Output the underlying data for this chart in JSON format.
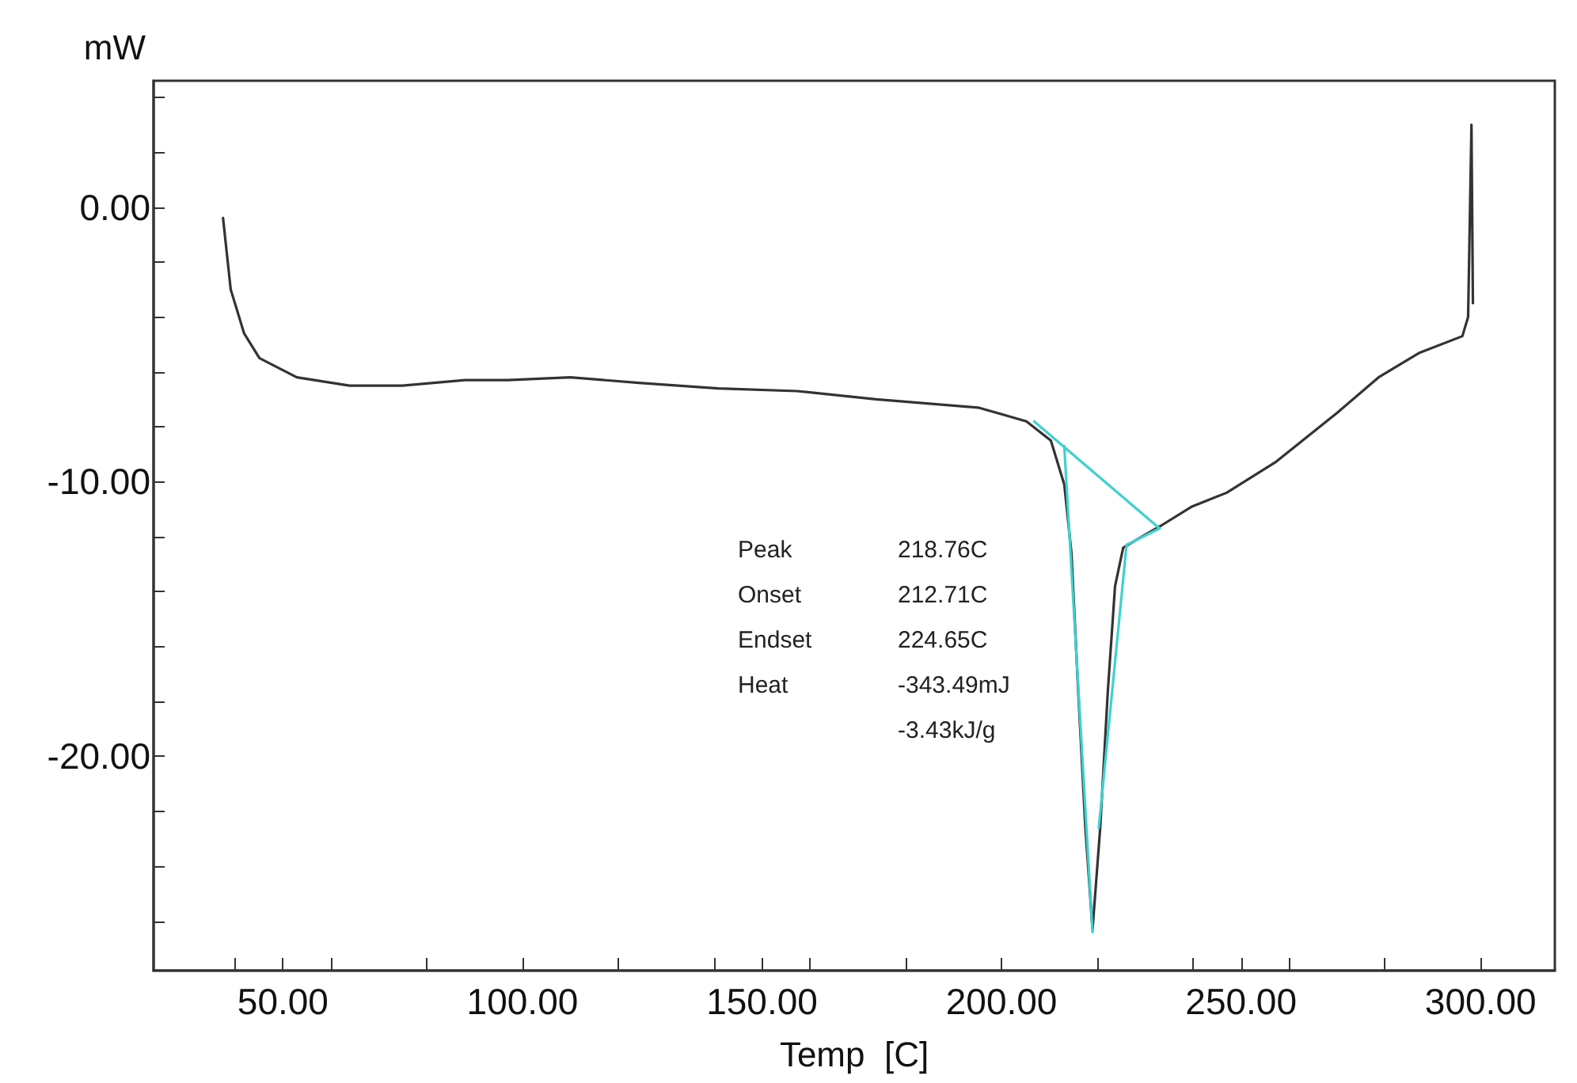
{
  "chart_data": {
    "type": "line",
    "xlabel": "Temp  [C]",
    "ylabel": "mW",
    "xlim": [
      23,
      315.5
    ],
    "ylim": [
      -27.8,
      4.6
    ],
    "xticks": [
      {
        "value": 40,
        "label": null
      },
      {
        "value": 50,
        "label": "50.00"
      },
      {
        "value": 60,
        "label": null
      },
      {
        "value": 80,
        "label": null
      },
      {
        "value": 100,
        "label": "100.00"
      },
      {
        "value": 120,
        "label": null
      },
      {
        "value": 140,
        "label": null
      },
      {
        "value": 150,
        "label": "150.00"
      },
      {
        "value": 160,
        "label": null
      },
      {
        "value": 180,
        "label": null
      },
      {
        "value": 200,
        "label": "200.00"
      },
      {
        "value": 220,
        "label": null
      },
      {
        "value": 240,
        "label": null
      },
      {
        "value": 250,
        "label": "250.00"
      },
      {
        "value": 260,
        "label": null
      },
      {
        "value": 280,
        "label": null
      },
      {
        "value": 300,
        "label": "300.00"
      }
    ],
    "yticks": [
      {
        "value": -26,
        "label": null
      },
      {
        "value": -24,
        "label": null
      },
      {
        "value": -22,
        "label": null
      },
      {
        "value": -20,
        "label": "-20.00"
      },
      {
        "value": -18,
        "label": null
      },
      {
        "value": -16,
        "label": null
      },
      {
        "value": -14,
        "label": null
      },
      {
        "value": -12,
        "label": null
      },
      {
        "value": -10,
        "label": "-10.00"
      },
      {
        "value": -8,
        "label": null
      },
      {
        "value": -6,
        "label": null
      },
      {
        "value": -4,
        "label": null
      },
      {
        "value": -2,
        "label": null
      },
      {
        "value": 0,
        "label": "0.00"
      },
      {
        "value": 2,
        "label": null
      },
      {
        "value": 4,
        "label": null
      }
    ],
    "grid": false,
    "marker": "none",
    "line_style": "solid",
    "series": [
      {
        "color": "#333333",
        "x": [
          37.5,
          39.1,
          41.9,
          45.1,
          52.9,
          63.9,
          74.8,
          88,
          96.9,
          110,
          124.3,
          140.8,
          157.3,
          173.8,
          195.1,
          205.2,
          210.3,
          213.1,
          214.6,
          216.0,
          217.5,
          219.0,
          220.6,
          222.2,
          223.7,
          225.4,
          228.3,
          233.3,
          239.8,
          247,
          257.1,
          270,
          278.7,
          287.3,
          296.2,
          297.4,
          298.1,
          298.4
        ],
        "values": [
          -0.4,
          -3.0,
          -4.6,
          -5.5,
          -6.2,
          -6.5,
          -6.5,
          -6.3,
          -6.3,
          -6.2,
          -6.4,
          -6.6,
          -6.7,
          -7.0,
          -7.3,
          -7.8,
          -8.5,
          -10.1,
          -12.6,
          -17.6,
          -22.6,
          -26.3,
          -22.6,
          -17.6,
          -13.8,
          -12.4,
          -12.1,
          -11.6,
          -10.9,
          -10.4,
          -9.3,
          -7.5,
          -6.2,
          -5.3,
          -4.7,
          -4.0,
          3.0,
          -3.5
        ]
      },
      {
        "color": "#40d0d0",
        "x": [
          206.8,
          233.0
        ],
        "values": [
          -7.8,
          -11.7
        ]
      },
      {
        "color": "#40d0d0",
        "x": [
          213.1,
          219.0
        ],
        "values": [
          -8.7,
          -26.4
        ]
      },
      {
        "color": "#40d0d0",
        "x": [
          220.3,
          226.1,
          233.0
        ],
        "values": [
          -22.6,
          -12.3,
          -11.7
        ]
      }
    ],
    "annotations": [
      "Peak",
      "218.76C",
      "Onset",
      "212.71C",
      "Endset",
      "224.65C",
      "Heat",
      "-343.49mJ",
      "-3.43kJ/g"
    ]
  }
}
